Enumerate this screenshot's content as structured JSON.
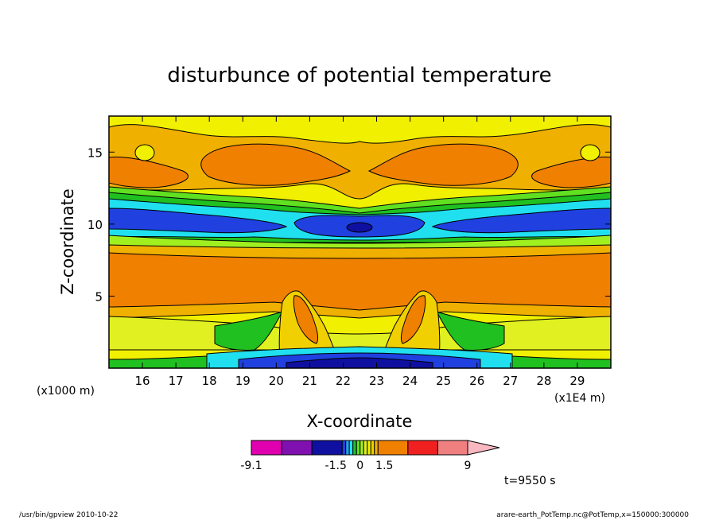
{
  "chart_data": {
    "type": "heatmap",
    "title": "disturbunce of potential temperature",
    "xlabel": "X-coordinate",
    "ylabel": "Z-coordinate",
    "x_unit_label": "(x1E4 m)",
    "y_unit_label": "(x1000 m)",
    "xlim": [
      15,
      30
    ],
    "ylim": [
      0,
      17.5
    ],
    "x_ticks": [
      16,
      17,
      18,
      19,
      20,
      21,
      22,
      23,
      24,
      25,
      26,
      27,
      28,
      29
    ],
    "y_ticks": [
      5,
      10,
      15
    ],
    "colorbar": {
      "labels": [
        {
          "value": -9.1,
          "text": "-9.1"
        },
        {
          "value": -1.5,
          "text": "-1.5"
        },
        {
          "value": 0,
          "text": "0"
        },
        {
          "value": 1.5,
          "text": "1.5"
        },
        {
          "value": 9,
          "text": "9"
        }
      ],
      "colors": [
        "#e000b0",
        "#8010b0",
        "#1010a0",
        "#2040e0",
        "#20a0f0",
        "#20e0f0",
        "#20c020",
        "#60e020",
        "#a0f020",
        "#e0f020",
        "#f0f000",
        "#f0d000",
        "#f0b000",
        "#f08000",
        "#f02020",
        "#f08080",
        "#f8b8c0"
      ]
    },
    "time_label": "t=9550 s"
  },
  "footer": {
    "left": "/usr/bin/gpview  2010-10-22",
    "right": "arare-earth_PotTemp.nc@PotTemp,x=150000:300000"
  }
}
